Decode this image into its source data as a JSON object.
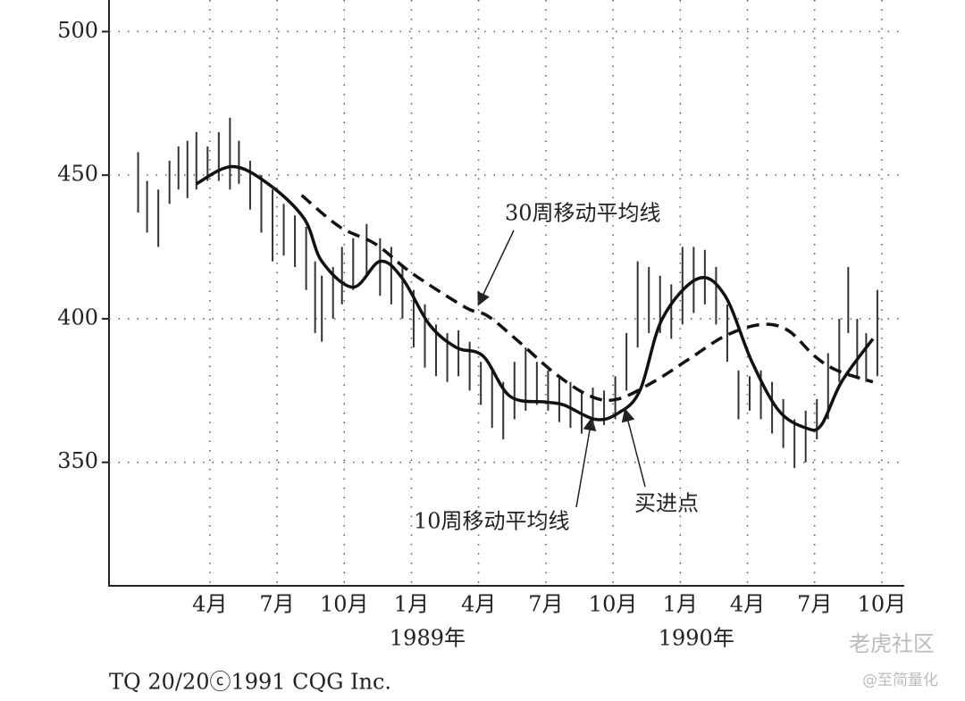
{
  "chart_data": {
    "type": "hilo",
    "x": [
      -0.2,
      0.2,
      0.7,
      1.2,
      1.6,
      2.0,
      2.4,
      2.9,
      3.4,
      3.9,
      4.3,
      4.8,
      5.3,
      5.8,
      6.3,
      6.8,
      7.3,
      7.7,
      8.0,
      8.5,
      8.9,
      9.4,
      10.0,
      10.6,
      11.1,
      11.6,
      12.1,
      12.6,
      13.1,
      13.6,
      14.1,
      14.6,
      15.1,
      15.6,
      16.1,
      16.6,
      17.1,
      17.6,
      18.1,
      18.6,
      19.1,
      19.6,
      20.1,
      20.6,
      21.1,
      21.6,
      22.1,
      22.6,
      23.1,
      23.6,
      24.1,
      24.6,
      25.1,
      25.6,
      26.1,
      26.6,
      27.1,
      27.6,
      28.1,
      28.6,
      29.1,
      29.6,
      30.1,
      30.6,
      31.1,
      31.5,
      31.9,
      32.3,
      32.8
    ],
    "high": [
      458,
      448,
      445,
      455,
      460,
      462,
      465,
      460,
      465,
      470,
      462,
      455,
      450,
      445,
      440,
      436,
      432,
      420,
      415,
      418,
      425,
      428,
      433,
      428,
      425,
      418,
      410,
      405,
      398,
      395,
      396,
      392,
      385,
      382,
      378,
      385,
      390,
      385,
      382,
      380,
      378,
      374,
      376,
      375,
      380,
      395,
      420,
      418,
      415,
      412,
      425,
      425,
      424,
      418,
      405,
      382,
      380,
      382,
      378,
      372,
      365,
      368,
      372,
      388,
      400,
      418,
      400,
      395,
      410
    ],
    "low": [
      437,
      430,
      425,
      440,
      445,
      442,
      445,
      448,
      448,
      445,
      447,
      438,
      430,
      420,
      422,
      418,
      410,
      395,
      392,
      400,
      405,
      410,
      415,
      408,
      405,
      400,
      390,
      383,
      380,
      378,
      380,
      375,
      370,
      362,
      358,
      365,
      368,
      370,
      368,
      364,
      362,
      360,
      362,
      363,
      365,
      375,
      390,
      395,
      395,
      393,
      398,
      402,
      405,
      398,
      385,
      365,
      368,
      365,
      360,
      355,
      348,
      350,
      358,
      365,
      378,
      395,
      380,
      378,
      380
    ],
    "color": "#333333",
    "series": [
      {
        "name": "10周移动平均线",
        "color": "#111111",
        "dash": false,
        "x": [
          2.4,
          4.0,
          5.6,
          7.2,
          8.0,
          9.4,
          10.6,
          11.6,
          12.8,
          14.0,
          15.2,
          16.4,
          18.0,
          18.8,
          20.2,
          21.2,
          22.2,
          23.2,
          24.8,
          26.0,
          27.2,
          28.4,
          29.6,
          30.3,
          31.2,
          32.6
        ],
        "values": [
          447,
          453,
          447,
          435,
          420,
          411,
          420,
          414,
          398,
          390,
          387,
          373,
          371,
          370,
          365,
          367,
          375,
          400,
          414,
          408,
          385,
          368,
          362,
          363,
          378,
          393
        ]
      },
      {
        "name": "30周移动平均线",
        "color": "#111111",
        "dash": true,
        "x": [
          7.1,
          8.8,
          10.4,
          12.0,
          14.4,
          15.4,
          16.8,
          18.4,
          20.0,
          21.2,
          22.8,
          24.4,
          26.0,
          27.6,
          28.8,
          30.0,
          31.0,
          32.6
        ],
        "values": [
          443,
          432,
          426,
          416,
          404,
          401,
          392,
          381,
          373,
          372,
          378,
          386,
          394,
          398,
          396,
          387,
          382,
          378
        ]
      }
    ],
    "annotations": [
      "买进点"
    ],
    "xlim": [
      -1.5,
      34
    ],
    "xticks": [
      {
        "value": 3,
        "label": "4月"
      },
      {
        "value": 6,
        "label": "7月"
      },
      {
        "value": 9,
        "label": "10月"
      },
      {
        "value": 12,
        "label": "1月"
      },
      {
        "value": 15,
        "label": "4月"
      },
      {
        "value": 18,
        "label": "7月"
      },
      {
        "value": 21,
        "label": "10月"
      },
      {
        "value": 24,
        "label": "1月"
      },
      {
        "value": 27,
        "label": "4月"
      },
      {
        "value": 30,
        "label": "7月"
      },
      {
        "value": 33,
        "label": "10月"
      }
    ],
    "years": [
      {
        "value": 12,
        "label": "1989年"
      },
      {
        "value": 24,
        "label": "1990年"
      }
    ],
    "ylim": [
      307,
      511
    ],
    "yticks": [
      350,
      400,
      450,
      500
    ],
    "grid": true,
    "footer": "TQ 20/20ⓒ1991 CQG Inc.",
    "watermarks": [
      "老虎社区",
      "@至简量化"
    ]
  }
}
